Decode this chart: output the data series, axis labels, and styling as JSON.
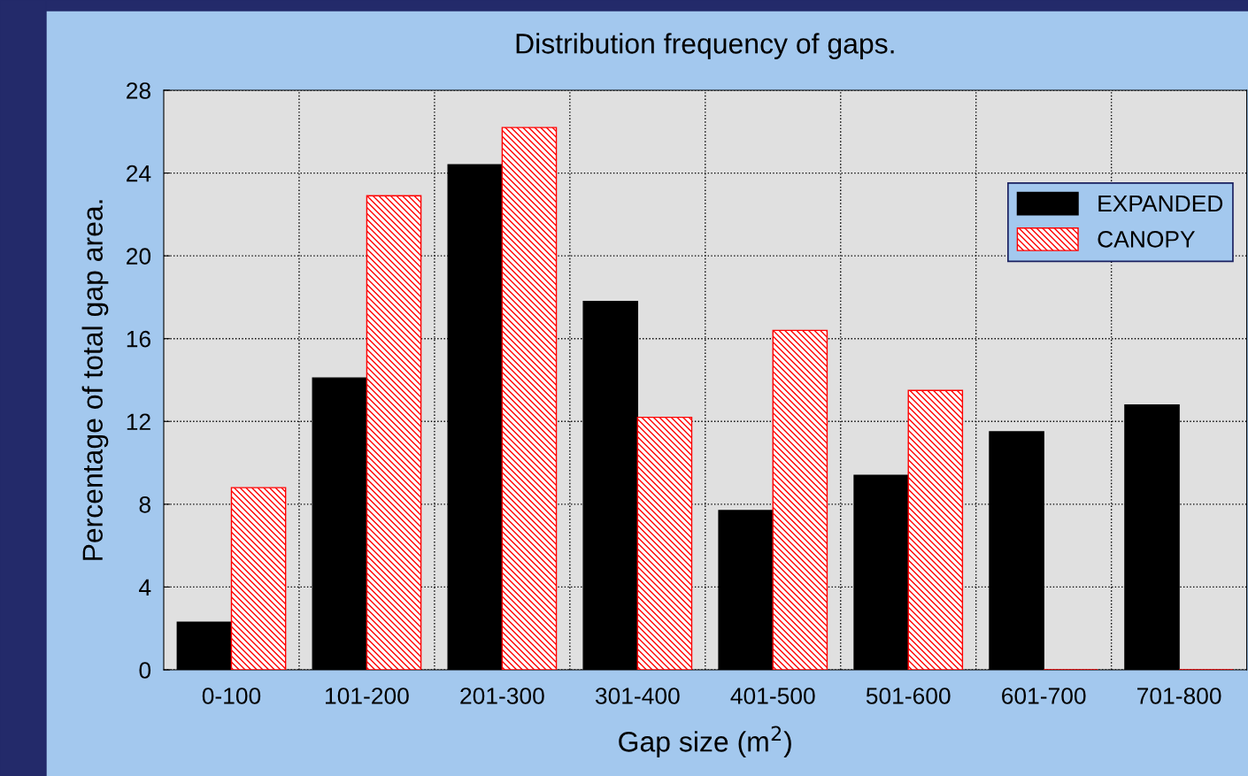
{
  "chart_data": {
    "type": "bar",
    "title": "Distribution frequency of gaps.",
    "xlabel": "Gap size (m$^{2}$)",
    "ylabel": "Percentage of total gap area.",
    "categories": [
      "0-100",
      "101-200",
      "201-300",
      "301-400",
      "401-500",
      "501-600",
      "601-700",
      "701-800"
    ],
    "series": [
      {
        "name": "EXPANDED",
        "color": "#000000",
        "values": [
          2.3,
          14.1,
          24.4,
          17.8,
          7.7,
          9.4,
          11.5,
          12.8
        ]
      },
      {
        "name": "CANOPY",
        "color": "#ff0000",
        "values": [
          8.8,
          22.9,
          26.2,
          12.2,
          16.4,
          13.5,
          0,
          0
        ]
      }
    ],
    "ylim": [
      0,
      28
    ],
    "yticks": [
      0,
      4,
      8,
      12,
      16,
      20,
      24,
      28
    ],
    "grid": true,
    "legend": "top right"
  }
}
